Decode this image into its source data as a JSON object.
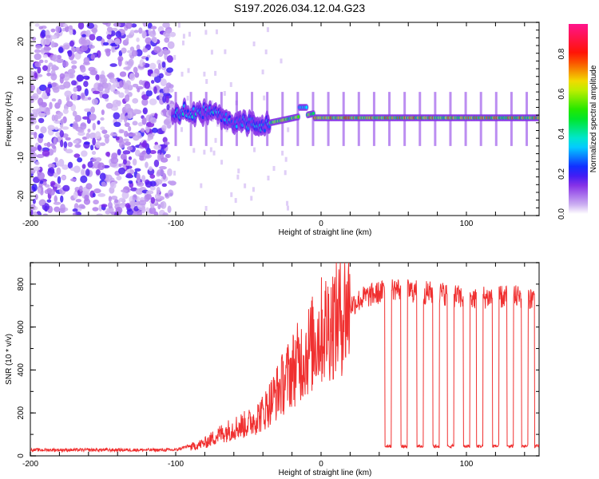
{
  "title": "S197.2026.034.12.04.G23",
  "chart_data": [
    {
      "type": "heatmap",
      "name": "spectrogram",
      "xlabel": "Height of straight line (km)",
      "ylabel": "Frequency (Hz)",
      "xlim": [
        -200,
        150
      ],
      "ylim": [
        -25,
        25
      ],
      "x_ticks": [
        -200,
        -100,
        0,
        100
      ],
      "x_tick_labels": [
        "-200",
        "-100",
        "0",
        "100"
      ],
      "y_ticks": [
        -20,
        -10,
        0,
        10,
        20
      ],
      "y_tick_labels": [
        "-20",
        "-10",
        "0",
        "10",
        "20"
      ],
      "colorbar": {
        "label": "Normalized spectral amplitude",
        "range": [
          0,
          0.95
        ],
        "ticks": [
          0.0,
          0.2,
          0.4,
          0.6,
          0.8
        ],
        "tick_labels": [
          "0.0",
          "0.2",
          "0.4",
          "0.6",
          "0.8"
        ],
        "colors": [
          "#ffffff",
          "#8a2be2",
          "#0000ff",
          "#00ffff",
          "#00ff00",
          "#ffff00",
          "#ff0000",
          "#ff1493"
        ]
      },
      "regions": [
        {
          "x_range": [
            -200,
            -102
          ],
          "description_level": "noise",
          "amplitude": 0.1
        },
        {
          "x_range": [
            -102,
            -35
          ],
          "freq_center": 2,
          "amplitude": 0.35
        },
        {
          "x_range": [
            -35,
            150
          ],
          "freq_center": 0.5,
          "amplitude": 0.75
        }
      ]
    },
    {
      "type": "line",
      "name": "snr",
      "xlabel": "Height of straight line (km)",
      "ylabel": "SNR (10 * v/v)",
      "xlim": [
        -200,
        150
      ],
      "ylim": [
        0,
        900
      ],
      "x_ticks": [
        -200,
        -100,
        0,
        100
      ],
      "x_tick_labels": [
        "-200",
        "-100",
        "0",
        "100"
      ],
      "y_ticks": [
        0,
        200,
        400,
        600,
        800
      ],
      "y_tick_labels": [
        "0",
        "200",
        "400",
        "600",
        "800"
      ],
      "color": "#f03030",
      "series": [
        {
          "name": "SNR",
          "x": [
            -200,
            -150,
            -100,
            -90,
            -80,
            -70,
            -60,
            -50,
            -40,
            -30,
            -20,
            -10,
            0,
            10,
            20,
            30,
            40,
            50,
            60,
            70,
            80,
            90,
            100,
            110,
            120,
            130,
            140,
            150
          ],
          "values": [
            20,
            20,
            20,
            40,
            60,
            100,
            130,
            150,
            200,
            300,
            400,
            480,
            580,
            640,
            700,
            740,
            760,
            780,
            770,
            760,
            760,
            750,
            730,
            740,
            740,
            740,
            740,
            730
          ]
        }
      ],
      "dropouts_x": [
        44,
        55,
        66,
        77,
        87,
        98,
        107,
        118,
        128,
        138,
        147
      ],
      "dropout_level": 45
    }
  ]
}
